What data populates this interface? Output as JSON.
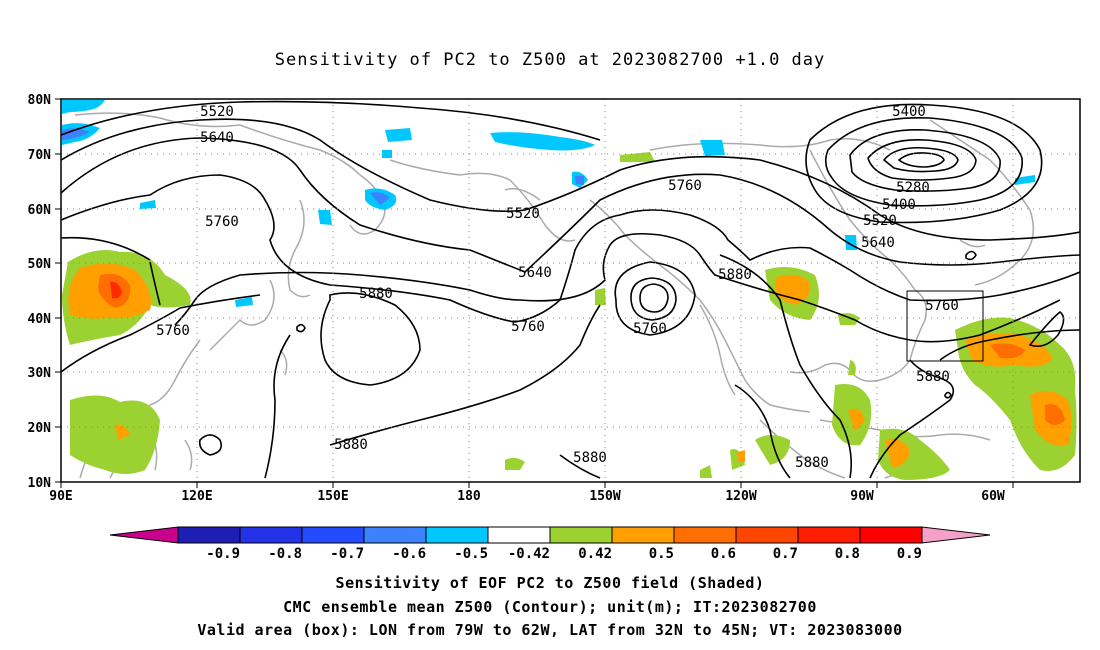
{
  "title": "Sensitivity of PC2 to Z500 at 2023082700 +1.0 day",
  "lat_labels": [
    "80N",
    "70N",
    "60N",
    "50N",
    "40N",
    "30N",
    "20N",
    "10N"
  ],
  "lon_labels": [
    "90E",
    "120E",
    "150E",
    "180",
    "150W",
    "120W",
    "90W",
    "60W"
  ],
  "contour_labels": [
    {
      "text": "5520"
    },
    {
      "text": "5640"
    },
    {
      "text": "5760"
    },
    {
      "text": "5760"
    },
    {
      "text": "5520"
    },
    {
      "text": "5640"
    },
    {
      "text": "5760"
    },
    {
      "text": "5880"
    },
    {
      "text": "5760"
    },
    {
      "text": "5760"
    },
    {
      "text": "5880"
    },
    {
      "text": "5400"
    },
    {
      "text": "5280"
    },
    {
      "text": "5400"
    },
    {
      "text": "5520"
    },
    {
      "text": "5640"
    },
    {
      "text": "5760"
    },
    {
      "text": "5880"
    },
    {
      "text": "5880"
    },
    {
      "text": "5880"
    },
    {
      "text": "5880"
    }
  ],
  "colorbar": {
    "colors": [
      "#c8008c",
      "#1e1eb4",
      "#2332e6",
      "#234bff",
      "#3c82ff",
      "#00c8ff",
      "#ffffff",
      "#9bd232",
      "#ffa000",
      "#ff6e00",
      "#ff4600",
      "#ff1e00",
      "#ff0000",
      "#f5a0c8"
    ],
    "labels": [
      "-0.9",
      "-0.8",
      "-0.7",
      "-0.6",
      "-0.5",
      "-0.42",
      "0.42",
      "0.5",
      "0.6",
      "0.7",
      "0.8",
      "0.9"
    ]
  },
  "footer": {
    "line1": "Sensitivity of EOF PC2 to Z500 field (Shaded)",
    "line2": "CMC ensemble mean Z500 (Contour); unit(m); IT:2023082700",
    "line3": "Valid area (box): LON from 79W to 62W, LAT from 32N to 45N; VT: 2023083000"
  }
}
